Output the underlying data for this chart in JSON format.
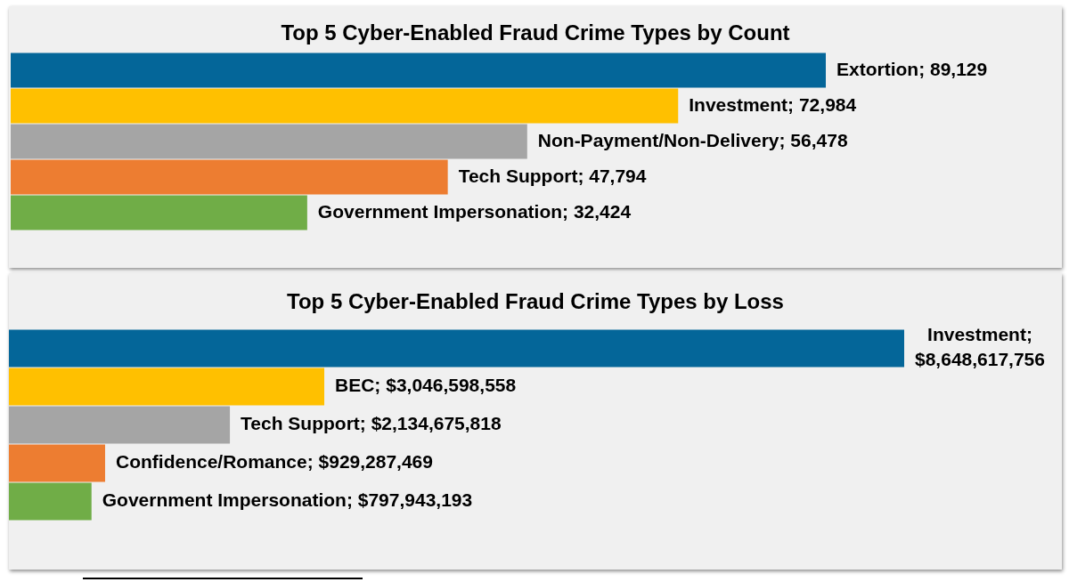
{
  "chart_data": [
    {
      "type": "bar",
      "orientation": "horizontal",
      "title": "Top 5 Cyber-Enabled Fraud Crime Types by Count",
      "categories": [
        null,
        null,
        null,
        null,
        null
      ],
      "values": [
        89129,
        72984,
        56478,
        47794,
        32424
      ],
      "colors": [
        "#046699",
        "#ffc000",
        "#a5a5a5",
        "#ed7d31",
        "#70ad47"
      ],
      "value_labels": [
        "Extortion; 89,129",
        "Investment; 72,984",
        "Non-Payment/Non-Delivery; 56,478",
        "Tech Support; 47,794",
        "Government Impersonation; 32,424"
      ],
      "tick_labels": false
    },
    {
      "type": "bar",
      "orientation": "horizontal",
      "title": "Top 5 Cyber-Enabled Fraud Crime Types by Loss",
      "categories": [
        null,
        null,
        null,
        null,
        null
      ],
      "values": [
        8648617756,
        3046598558,
        2134675818,
        929287469,
        797943193
      ],
      "colors": [
        "#046699",
        "#ffc000",
        "#a5a5a5",
        "#ed7d31",
        "#70ad47"
      ],
      "value_labels": [
        "Investment; $8,648,617,756",
        "BEC; $3,046,598,558",
        "Tech Support; $2,134,675,818",
        "Confidence/Romance; $929,287,469",
        "Government Impersonation; $797,943,193"
      ],
      "tick_labels": false
    }
  ]
}
